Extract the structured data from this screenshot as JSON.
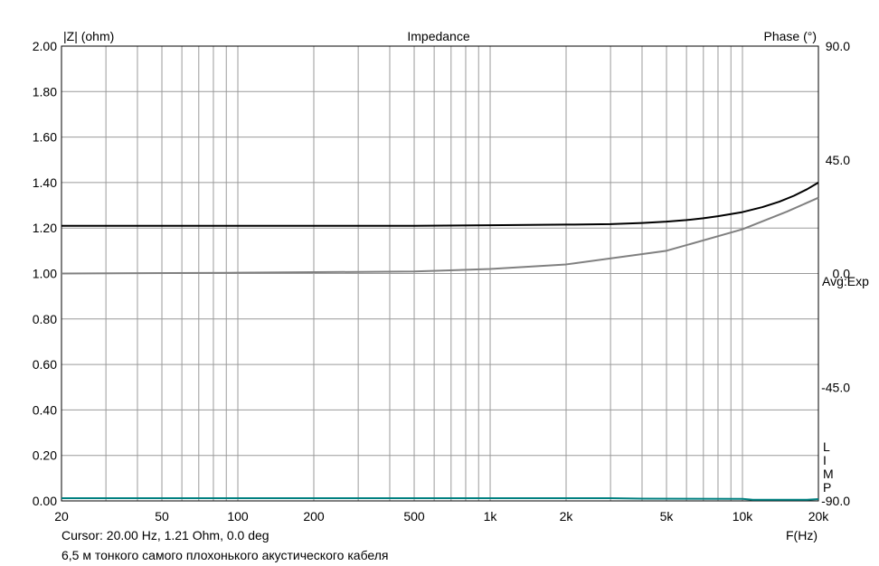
{
  "chart_data": {
    "type": "line",
    "title": "Impedance",
    "left_axis_label": "|Z| (ohm)",
    "right_axis_label": "Phase (°)",
    "xlabel": "F(Hz)",
    "x_scale": "log",
    "xlim": [
      20,
      20000
    ],
    "x_ticks": [
      {
        "value": 20,
        "label": "20"
      },
      {
        "value": 50,
        "label": "50"
      },
      {
        "value": 100,
        "label": "100"
      },
      {
        "value": 200,
        "label": "200"
      },
      {
        "value": 500,
        "label": "500"
      },
      {
        "value": 1000,
        "label": "1k"
      },
      {
        "value": 2000,
        "label": "2k"
      },
      {
        "value": 5000,
        "label": "5k"
      },
      {
        "value": 10000,
        "label": "10k"
      },
      {
        "value": 20000,
        "label": "20k"
      }
    ],
    "ylim": [
      0,
      2.0
    ],
    "y_ticks": [
      "0.00",
      "0.20",
      "0.40",
      "0.60",
      "0.80",
      "1.00",
      "1.20",
      "1.40",
      "1.60",
      "1.80",
      "2.00"
    ],
    "y2lim": [
      -90,
      90
    ],
    "y2_ticks": [
      "90.0",
      "45.0",
      "0.0",
      "-45.0",
      "-90.0"
    ],
    "grid": true,
    "avg_label": "Avg:Exp",
    "limp_letters": [
      "L",
      "I",
      "M",
      "P"
    ],
    "series": [
      {
        "axis": "left",
        "color": "#000000",
        "x": [
          20,
          50,
          100,
          200,
          500,
          1000,
          2000,
          3000,
          4000,
          5000,
          6000,
          7000,
          8000,
          10000,
          12000,
          14000,
          16000,
          18000,
          20000
        ],
        "values": [
          1.21,
          1.21,
          1.21,
          1.21,
          1.21,
          1.212,
          1.215,
          1.217,
          1.222,
          1.228,
          1.235,
          1.243,
          1.252,
          1.27,
          1.292,
          1.316,
          1.342,
          1.37,
          1.4
        ]
      },
      {
        "axis": "right",
        "color": "#808080",
        "x": [
          20,
          100,
          500,
          1000,
          2000,
          5000,
          10000,
          15000,
          20000
        ],
        "values": [
          0.0,
          0.3,
          0.8,
          1.8,
          3.6,
          9.0,
          17.5,
          24.5,
          30.0
        ]
      },
      {
        "axis": "left",
        "color": "#008080",
        "x": [
          20,
          100,
          1000,
          3000,
          4000,
          10000,
          11000,
          18000,
          20000
        ],
        "values": [
          0.012,
          0.012,
          0.012,
          0.012,
          0.01,
          0.009,
          0.005,
          0.005,
          0.008
        ]
      }
    ]
  },
  "footer": {
    "cursor": "Cursor: 20.00 Hz, 1.21 Ohm, 0.0 deg",
    "note": "6,5 м тонкого самого плохонького акустического кабеля"
  }
}
